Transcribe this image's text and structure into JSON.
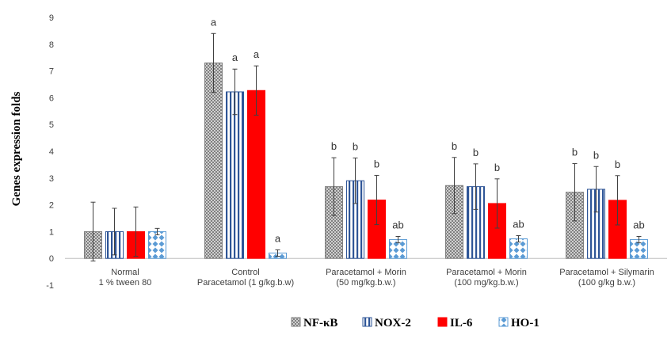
{
  "chart_data": {
    "type": "bar",
    "title": "",
    "ylabel": "Genes expression folds",
    "xlabel": "",
    "ylim": [
      -1,
      9
    ],
    "yticks": [
      -1,
      0,
      1,
      2,
      3,
      4,
      5,
      6,
      7,
      8,
      9
    ],
    "grid": false,
    "legend_position": "bottom",
    "categories": [
      [
        "Normal",
        "1 % tween 80"
      ],
      [
        "Control",
        "Paracetamol (1 g/kg.b.w)"
      ],
      [
        "Paracetamol + Morin",
        "(50 mg/kg.b.w.)"
      ],
      [
        "Paracetamol + Morin",
        "(100 mg/kg.b.w.)"
      ],
      [
        "Paracetamol + Silymarin",
        "(100 g/kg b.w.)"
      ]
    ],
    "series": [
      {
        "name": "NF-κB",
        "pattern": "checker",
        "color": "#7f7f7f",
        "values": [
          1.0,
          7.3,
          2.68,
          2.72,
          2.47
        ],
        "errors": [
          1.1,
          1.1,
          1.08,
          1.05,
          1.07
        ],
        "labels": [
          "",
          "a",
          "b",
          "b",
          "b"
        ]
      },
      {
        "name": "NOX-2",
        "pattern": "vertical",
        "color": "#2e5597",
        "values": [
          1.0,
          6.22,
          2.9,
          2.68,
          2.58
        ],
        "errors": [
          0.87,
          0.85,
          0.85,
          0.85,
          0.85
        ],
        "labels": [
          "",
          "a",
          "b",
          "b",
          "b"
        ]
      },
      {
        "name": "IL-6",
        "pattern": "solid",
        "color": "#ff0000",
        "values": [
          1.0,
          6.27,
          2.18,
          2.05,
          2.17
        ],
        "errors": [
          0.92,
          0.92,
          0.92,
          0.92,
          0.92
        ],
        "labels": [
          "",
          "a",
          "b",
          "b",
          "b"
        ]
      },
      {
        "name": "HO-1",
        "pattern": "diamond",
        "color": "#5b9bd5",
        "values": [
          1.0,
          0.2,
          0.7,
          0.73,
          0.7
        ],
        "errors": [
          0.12,
          0.12,
          0.12,
          0.12,
          0.12
        ],
        "labels": [
          "",
          "a",
          "ab",
          "ab",
          "ab"
        ]
      }
    ]
  }
}
